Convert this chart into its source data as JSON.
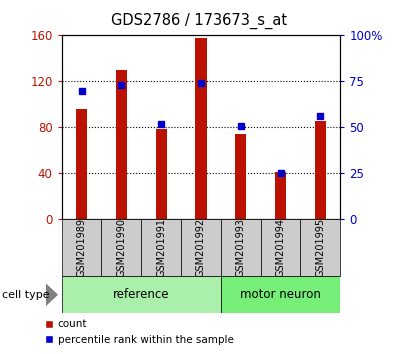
{
  "title": "GDS2786 / 173673_s_at",
  "categories": [
    "GSM201989",
    "GSM201990",
    "GSM201991",
    "GSM201992",
    "GSM201993",
    "GSM201994",
    "GSM201995"
  ],
  "counts": [
    96,
    130,
    79,
    158,
    74,
    41,
    86
  ],
  "percentiles": [
    70,
    73,
    52,
    74,
    51,
    25,
    56
  ],
  "bar_color": "#BB1100",
  "dot_color": "#0000CC",
  "ylim_left": [
    0,
    160
  ],
  "ylim_right": [
    0,
    100
  ],
  "yticks_left": [
    0,
    40,
    80,
    120,
    160
  ],
  "yticks_right": [
    0,
    25,
    50,
    75,
    100
  ],
  "ytick_labels_right": [
    "0",
    "25",
    "50",
    "75",
    "100%"
  ],
  "reference_color": "#aaf0aa",
  "motor_neuron_color": "#77ee77",
  "tick_box_color": "#cccccc",
  "ref_count": 4,
  "mot_count": 3
}
